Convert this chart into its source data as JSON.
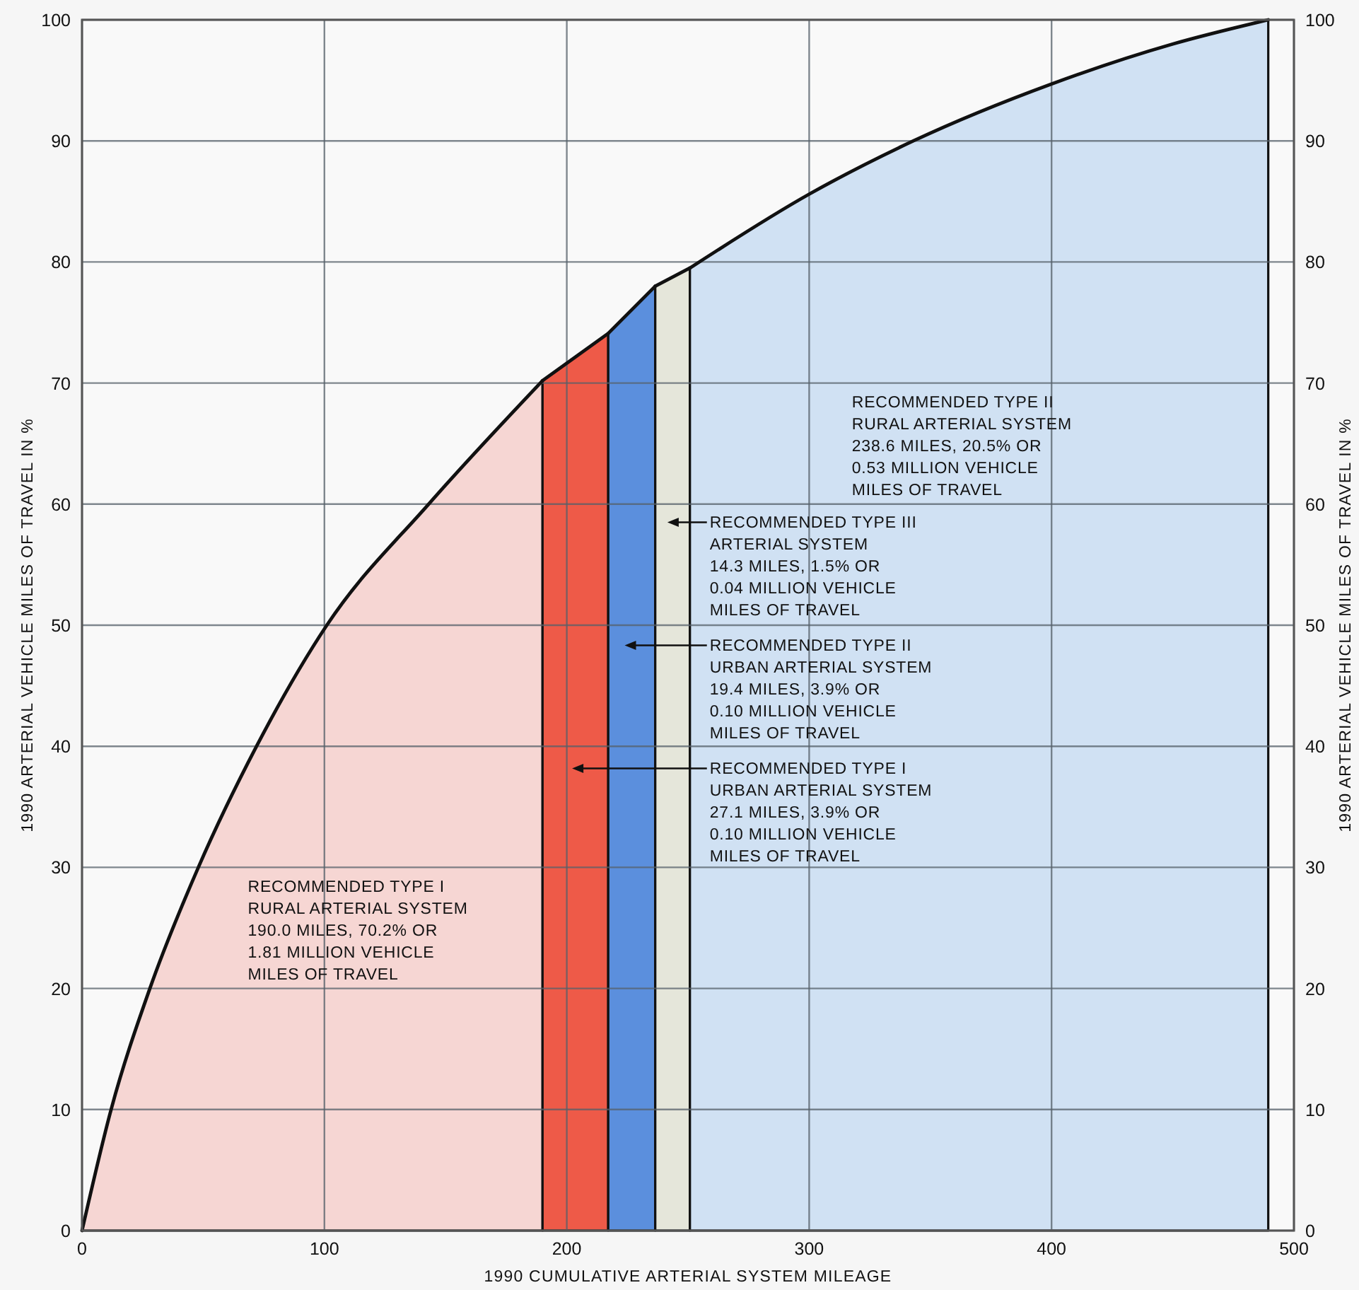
{
  "chart_data": {
    "type": "area",
    "xlabel": "1990 CUMULATIVE ARTERIAL SYSTEM MILEAGE",
    "ylabel": "1990 ARTERIAL VEHICLE MILES OF TRAVEL IN %",
    "y2label": "1990 ARTERIAL VEHICLE MILES OF TRAVEL IN %",
    "xlim": [
      0,
      500
    ],
    "xticks": [
      0,
      100,
      200,
      300,
      400,
      500
    ],
    "ylim": [
      0,
      100
    ],
    "yticks": [
      0,
      10,
      20,
      30,
      40,
      50,
      60,
      70,
      80,
      90,
      100
    ],
    "y2lim": [
      0,
      100
    ],
    "y2ticks": [
      0,
      10,
      20,
      30,
      40,
      50,
      60,
      70,
      80,
      90,
      100
    ],
    "grid": true,
    "series": [
      {
        "color": "#f6d6d3",
        "x": [
          0,
          12,
          28,
          48,
          72,
          101,
          143,
          190
        ],
        "values": [
          0,
          10,
          20,
          30,
          40,
          50,
          60,
          70.2
        ]
      },
      {
        "color": "#ee5a48",
        "x": [
          190,
          217.1
        ],
        "values": [
          70.2,
          74.1
        ]
      },
      {
        "color": "#5b8fdd",
        "x": [
          217.1,
          236.5
        ],
        "values": [
          74.1,
          78.0
        ]
      },
      {
        "color": "#e5e6da",
        "x": [
          236.5,
          250.8
        ],
        "values": [
          78.0,
          79.5
        ]
      },
      {
        "color": "#d0e1f3",
        "x": [
          250.8,
          300,
          343,
          400,
          450,
          489.4
        ],
        "values": [
          79.5,
          85.6,
          90,
          94.7,
          98,
          100
        ]
      }
    ],
    "annotations": [
      "RECOMMENDED TYPE I\nRURAL ARTERIAL SYSTEM\n190.0 MILES, 70.2% OR\n1.81 MILLION VEHICLE\nMILES OF TRAVEL",
      "RECOMMENDED TYPE I\nURBAN ARTERIAL SYSTEM\n27.1 MILES, 3.9% OR\n0.10 MILLION VEHICLE\nMILES OF TRAVEL",
      "RECOMMENDED TYPE II\nURBAN ARTERIAL SYSTEM\n19.4 MILES, 3.9% OR\n0.10 MILLION VEHICLE\nMILES OF TRAVEL",
      "RECOMMENDED TYPE III\nARTERIAL SYSTEM\n14.3 MILES, 1.5% OR\n0.04 MILLION VEHICLE\nMILES OF TRAVEL",
      "RECOMMENDED TYPE II\nRURAL ARTERIAL SYSTEM\n238.6 MILES, 20.5% OR\n0.53 MILLION VEHICLE\nMILES OF TRAVEL"
    ]
  }
}
